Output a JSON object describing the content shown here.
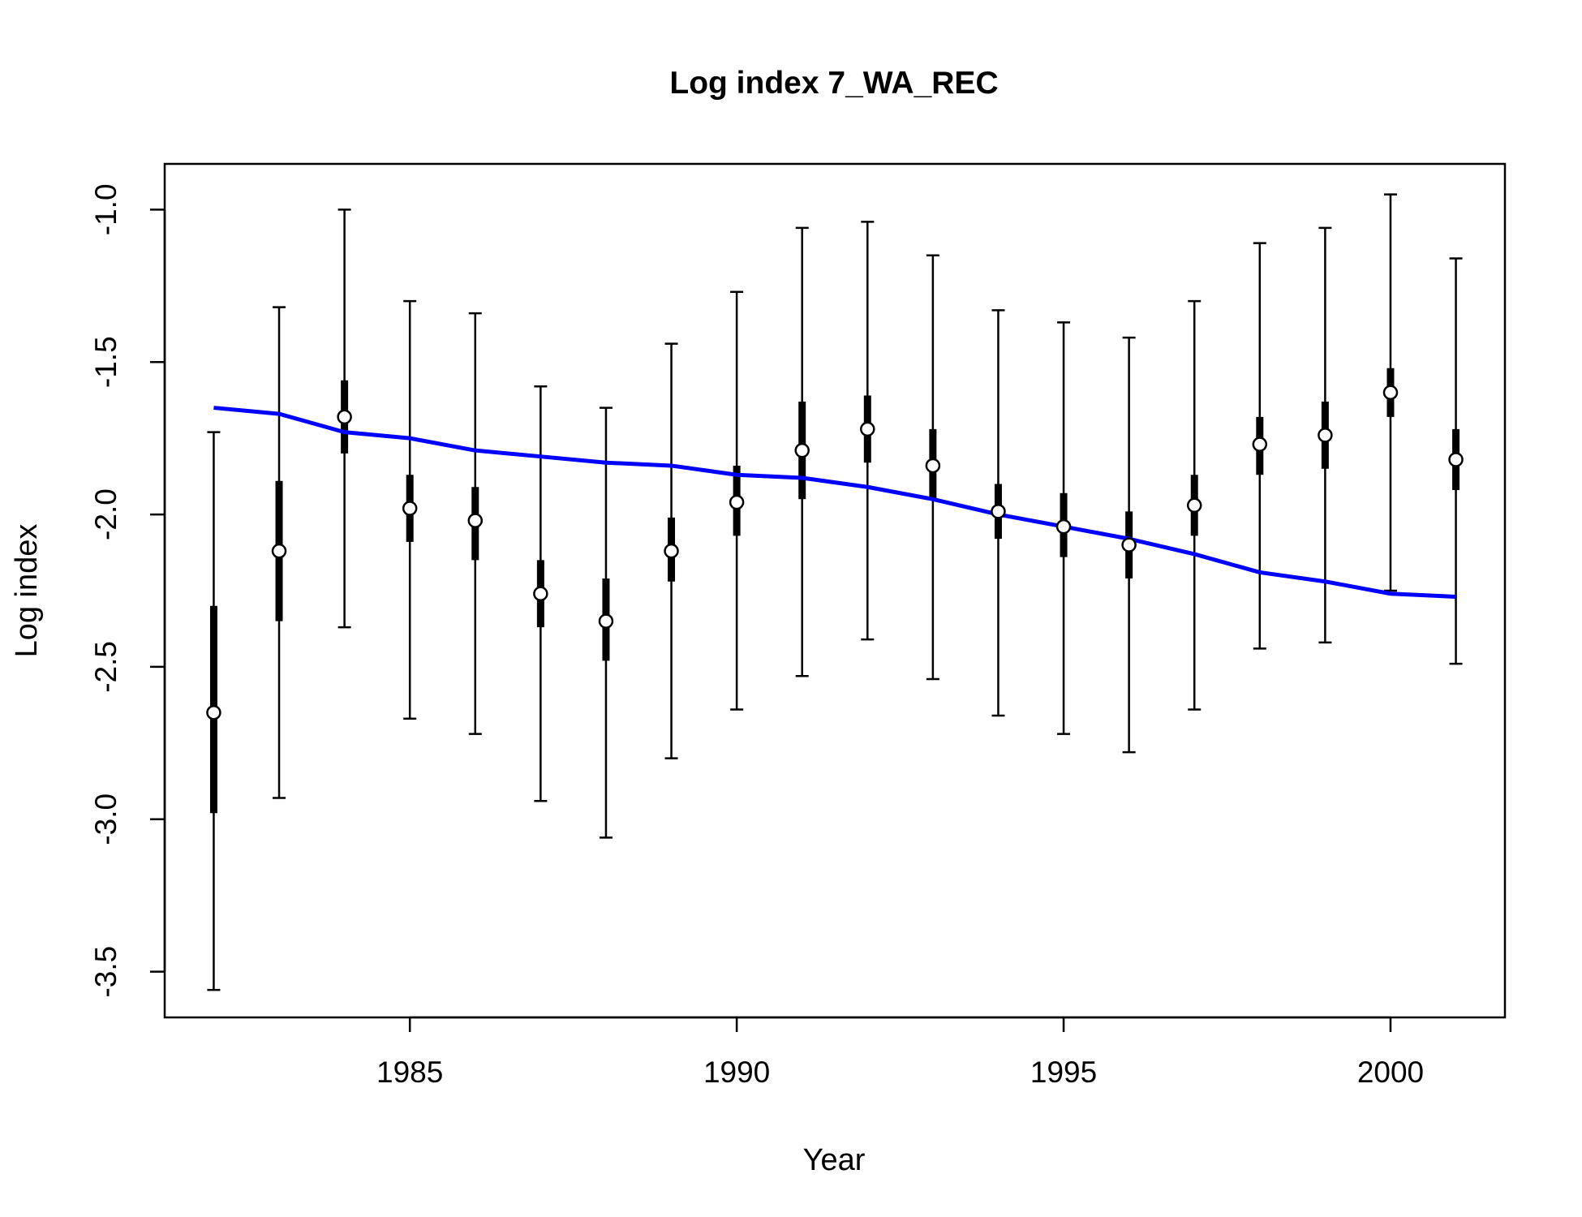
{
  "chart_data": {
    "type": "scatter",
    "title": "Log index 7_WA_REC",
    "xlabel": "Year",
    "ylabel": "Log index",
    "xlim": [
      1981.25,
      2001.75
    ],
    "ylim": [
      -3.65,
      -0.85
    ],
    "x_ticks": [
      1985,
      1990,
      1995,
      2000
    ],
    "x_tick_labels": [
      "1985",
      "1990",
      "1995",
      "2000"
    ],
    "y_ticks": [
      -3.5,
      -3.0,
      -2.5,
      -2.0,
      -1.5,
      -1.0
    ],
    "y_tick_labels": [
      "-3.5",
      "-3.0",
      "-2.5",
      "-2.0",
      "-1.5",
      "-1.0"
    ],
    "grid": false,
    "series": [
      {
        "kind": "observed",
        "x": [
          1982,
          1983,
          1984,
          1985,
          1986,
          1987,
          1988,
          1989,
          1990,
          1991,
          1992,
          1993,
          1994,
          1995,
          1996,
          1997,
          1998,
          1999,
          2000,
          2001
        ],
        "values": [
          -2.65,
          -2.12,
          -1.68,
          -1.98,
          -2.02,
          -2.26,
          -2.35,
          -2.12,
          -1.96,
          -1.79,
          -1.72,
          -1.84,
          -1.99,
          -2.04,
          -2.1,
          -1.97,
          -1.77,
          -1.74,
          -1.6,
          -1.82
        ],
        "outer_lower": [
          -3.56,
          -2.93,
          -2.37,
          -2.67,
          -2.72,
          -2.94,
          -3.06,
          -2.8,
          -2.64,
          -2.53,
          -2.41,
          -2.54,
          -2.66,
          -2.72,
          -2.78,
          -2.64,
          -2.44,
          -2.42,
          -2.25,
          -2.49
        ],
        "outer_upper": [
          -1.73,
          -1.32,
          -1.0,
          -1.3,
          -1.34,
          -1.58,
          -1.65,
          -1.44,
          -1.27,
          -1.06,
          -1.04,
          -1.15,
          -1.33,
          -1.37,
          -1.42,
          -1.3,
          -1.11,
          -1.06,
          -0.95,
          -1.16
        ],
        "inner_lower": [
          -2.98,
          -2.35,
          -1.8,
          -2.09,
          -2.15,
          -2.37,
          -2.48,
          -2.22,
          -2.07,
          -1.95,
          -1.83,
          -1.95,
          -2.08,
          -2.14,
          -2.21,
          -2.07,
          -1.87,
          -1.85,
          -1.68,
          -1.92
        ],
        "inner_upper": [
          -2.3,
          -1.89,
          -1.56,
          -1.87,
          -1.91,
          -2.15,
          -2.21,
          -2.01,
          -1.84,
          -1.63,
          -1.61,
          -1.72,
          -1.9,
          -1.93,
          -1.99,
          -1.87,
          -1.68,
          -1.63,
          -1.52,
          -1.72
        ]
      },
      {
        "kind": "expected",
        "color": "#0000ff",
        "x": [
          1982,
          1983,
          1984,
          1985,
          1986,
          1987,
          1988,
          1989,
          1990,
          1991,
          1992,
          1993,
          1994,
          1995,
          1996,
          1997,
          1998,
          1999,
          2000,
          2001
        ],
        "values": [
          -1.65,
          -1.67,
          -1.73,
          -1.75,
          -1.79,
          -1.81,
          -1.83,
          -1.84,
          -1.87,
          -1.88,
          -1.91,
          -1.95,
          -2.0,
          -2.04,
          -2.08,
          -2.13,
          -2.19,
          -2.22,
          -2.26,
          -2.27
        ]
      }
    ]
  }
}
